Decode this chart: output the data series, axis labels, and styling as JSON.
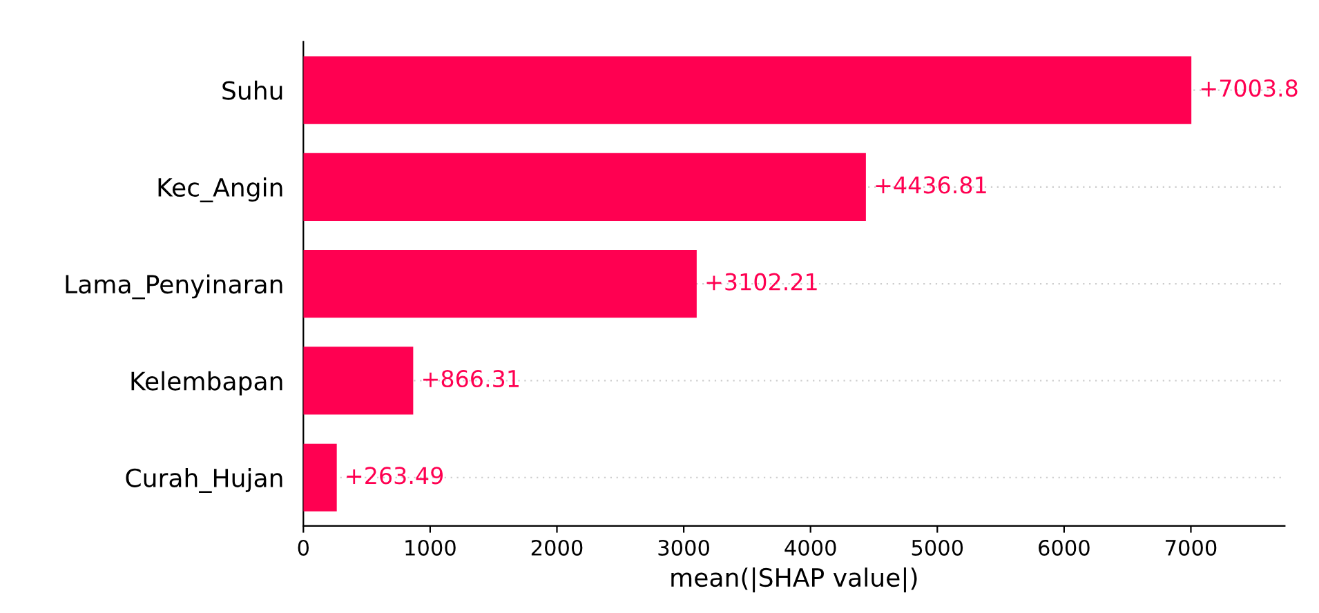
{
  "chart_data": {
    "type": "bar",
    "orientation": "horizontal",
    "xlabel": "mean(|SHAP value|)",
    "categories": [
      "Suhu",
      "Kec_Angin",
      "Lama_Penyinaran",
      "Kelembapan",
      "Curah_Hujan"
    ],
    "values": [
      7003.8,
      4436.81,
      3102.21,
      866.31,
      263.49
    ],
    "value_labels": [
      "+7003.8",
      "+4436.81",
      "+3102.21",
      "+866.31",
      "+263.49"
    ],
    "color": "#ff0051",
    "xlim": [
      0,
      7740
    ],
    "xticks": [
      0,
      1000,
      2000,
      3000,
      4000,
      5000,
      6000,
      7000
    ],
    "grid": "y"
  }
}
